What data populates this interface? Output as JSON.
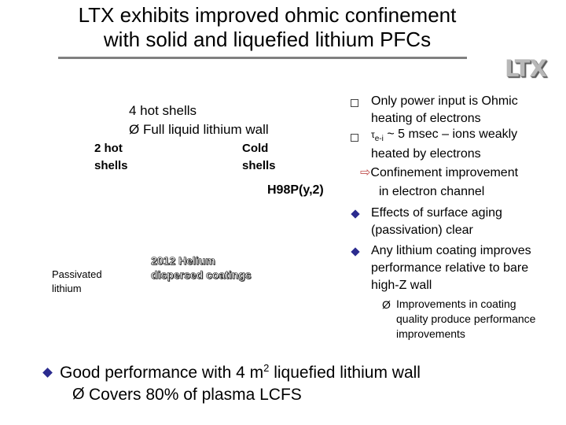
{
  "title": {
    "line1": "LTX exhibits improved ohmic confinement",
    "line2": "with solid and liquefied lithium PFCs"
  },
  "logo": {
    "text": "LTX"
  },
  "annotations": {
    "hot4": "4 hot shells",
    "full_liquid_arrow": "Ø",
    "full_liquid": "Full liquid lithium wall",
    "hot2_line1": "2 hot",
    "hot2_line2": "shells",
    "cold_line1": "Cold",
    "cold_line2": "shells",
    "h98": "H98P(y,2)",
    "passivated_line1": "Passivated",
    "passivated_line2": "lithium",
    "helium_line1": "2012 Helium",
    "helium_line2": "dispersed coatings"
  },
  "bullets": {
    "b1_line1": "Only power input is Ohmic",
    "b1_line2": "heating of electrons",
    "b2_tau": "τ",
    "b2_sub": "e-i",
    "b2_rest": " ~ 5 msec – ions weakly",
    "b3": "heated by electrons",
    "b4_arrow": "⇨",
    "b4": "Confinement improvement",
    "b5": "in electron channel",
    "b6_line1": "Effects of surface aging",
    "b6_line2": "(passivation) clear",
    "b7_line1": "Any lithium coating improves",
    "b7_line2": "performance relative to bare",
    "b7_line3": "high-Z wall",
    "b8_arrow": "Ø",
    "b8_line1": "Improvements in coating",
    "b8_line2": "quality produce performance",
    "b8_line3": "improvements"
  },
  "main": {
    "text_pre": "Good performance with 4 m",
    "text_sup": "2",
    "text_post": " liquefied lithium wall",
    "sub_arrow": "Ø",
    "sub_text": "Covers 80% of plasma LCFS"
  },
  "colors": {
    "title_rule": "#808080",
    "diamond_bullet": "#2b2b8f",
    "logo": "#b8b8b8"
  }
}
